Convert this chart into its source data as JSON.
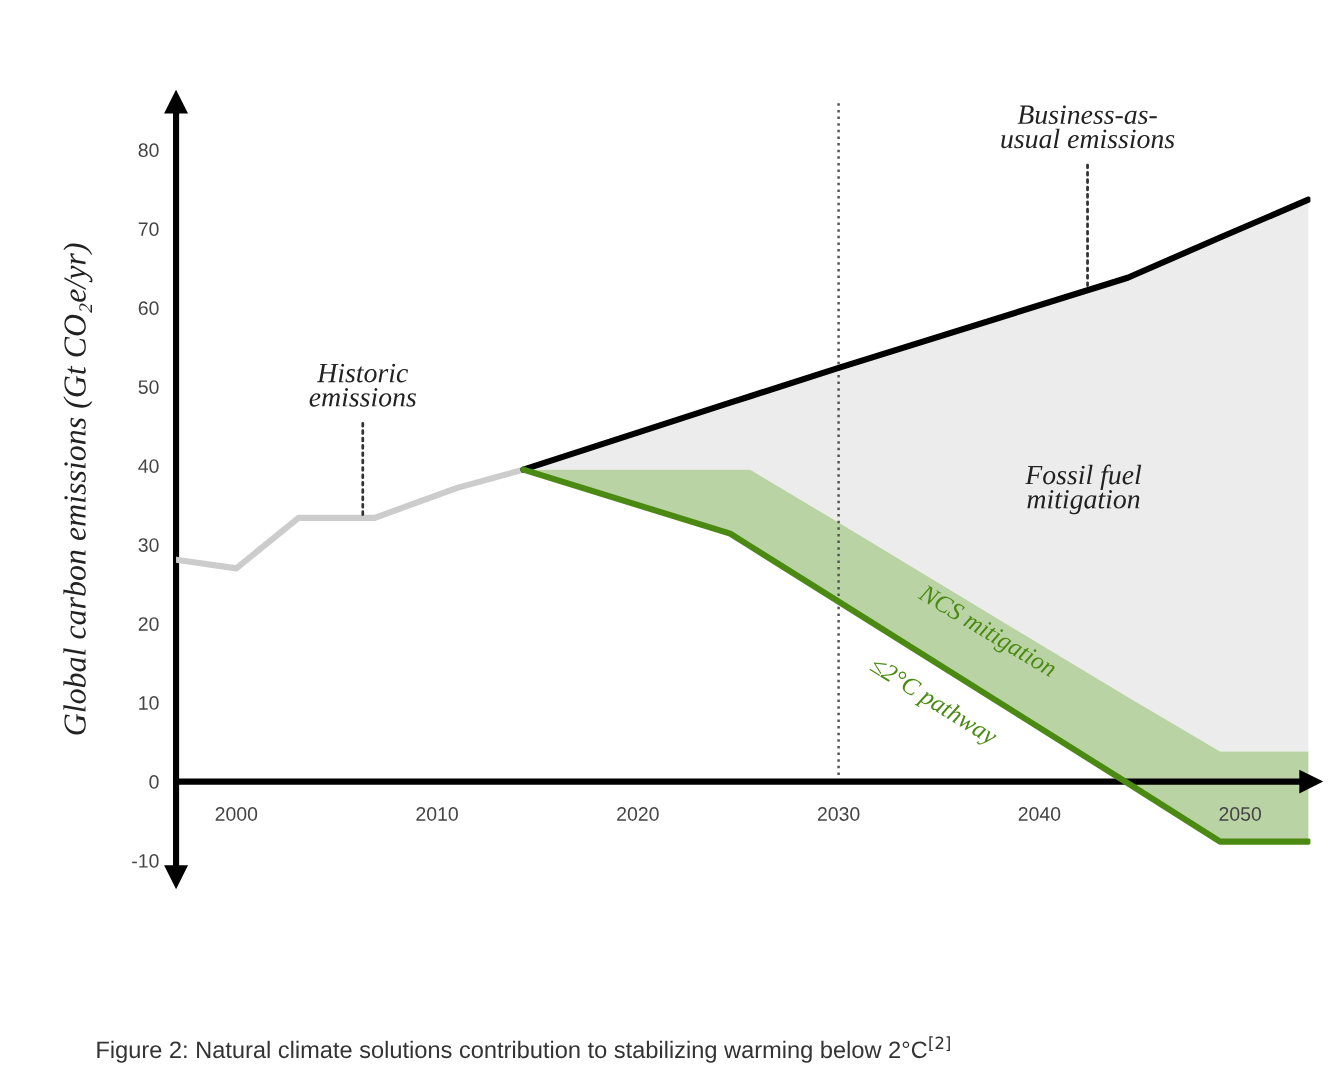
{
  "chart_data": {
    "type": "line",
    "ylabel": "Global carbon emissions (Gt CO₂e/yr)",
    "xlim": [
      1997,
      2053.5
    ],
    "ylim": [
      -12,
      86
    ],
    "xticks": [
      2000,
      2010,
      2020,
      2030,
      2040,
      2050
    ],
    "yticks": [
      -10,
      0,
      10,
      20,
      30,
      40,
      50,
      60,
      70,
      80
    ],
    "grid": false,
    "legend": false,
    "series": [
      {
        "color": "#cccccc",
        "x": [
          1997,
          2000,
          2003.1,
          2006.9,
          2011,
          2014.3
        ],
        "values": [
          28.1,
          27.0,
          33.4,
          33.4,
          37.2,
          39.5
        ]
      },
      {
        "color": "#000000",
        "x": [
          2014.3,
          2024.6,
          2025.6,
          2030,
          2044.4,
          2049,
          2053.4
        ],
        "values": [
          39.5,
          48.0,
          48.8,
          52.4,
          63.8,
          68.9,
          73.7
        ],
        "lower": [
          39.5,
          39.5,
          39.5,
          32.8,
          10.7,
          3.8,
          3.8
        ],
        "upper": [
          39.5,
          48.0,
          48.8,
          52.4,
          63.8,
          68.9,
          73.7
        ]
      },
      {
        "color": "#4a8a12",
        "x": [
          2014.3,
          2024.6,
          2025.6,
          2030,
          2044.4,
          2049,
          2053.4
        ],
        "values": [
          39.5,
          31.4,
          29.8,
          22.8,
          -0.2,
          -7.6,
          -7.6
        ],
        "lower": [
          39.5,
          31.4,
          29.8,
          22.8,
          -0.2,
          -7.6,
          -7.6
        ],
        "upper": [
          39.5,
          39.5,
          39.5,
          32.8,
          10.7,
          3.8,
          3.8
        ]
      }
    ],
    "ref_lines": [
      {
        "axis": "x",
        "value": 2030,
        "color": "#555555",
        "line_style": "dotted"
      }
    ],
    "annotations": [
      {
        "text": "Historic\nemissions",
        "x": 2006.3,
        "y": 33.4
      },
      {
        "text": "Business-as-\nusual emissions",
        "x": 2042.4,
        "y": 62.6
      },
      "Fossil fuel\nmitigation",
      "NCS mitigation",
      "≤2°C pathway",
      "Figure 2: Natural climate solutions contribution to stabilizing warming below 2°C$^{[2]}$"
    ]
  }
}
